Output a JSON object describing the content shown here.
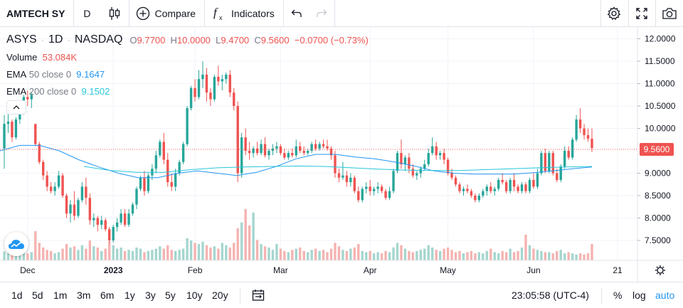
{
  "toolbar": {
    "symbol": "AMTECH SY",
    "interval": "D",
    "compare_label": "Compare",
    "indicators_label": "Indicators",
    "icons": [
      "candles-icon",
      "plus-circle-icon",
      "fx-icon",
      "undo-icon",
      "redo-icon",
      "gear-icon",
      "fullscreen-icon",
      "camera-icon"
    ]
  },
  "legend": {
    "ticker": "ASYS",
    "interval": "1D",
    "exchange": "NASDAQ",
    "o_label": "O",
    "o": "9.7700",
    "h_label": "H",
    "h": "10.0000",
    "l_label": "L",
    "l": "9.4700",
    "c_label": "C",
    "c": "9.5600",
    "change": "−0.0700 (−0.73%)",
    "volume_label": "Volume",
    "volume": "53.084K",
    "ema50_label": "EMA",
    "ema50_params": "50 close 0",
    "ema50_value": "9.1647",
    "ema200_label": "EMA",
    "ema200_params": "200 close 0",
    "ema200_value": "9.1502"
  },
  "chart_data": {
    "type": "candlestick",
    "y_ticks": [
      "12.0000",
      "11.5000",
      "11.0000",
      "10.5000",
      "10.0000",
      "9.0000",
      "8.5000",
      "8.0000",
      "7.5000"
    ],
    "ylim": [
      7.1,
      12.3
    ],
    "x_ticks": [
      "Dec",
      "2023",
      "Feb",
      "Mar",
      "Apr",
      "May",
      "Jun",
      "21"
    ],
    "last_price_label": "9.5600",
    "last_price": 9.56,
    "colors": {
      "up": "#26a69a",
      "down": "#ef5350",
      "up_volume": "#a5d6cf",
      "down_volume": "#f5b3b1",
      "ema50": "#2196f3",
      "ema200": "#26c6da"
    },
    "series": [
      {
        "name": "candles",
        "format": "open,high,low,close",
        "values": [
          [
            9.55,
            10.3,
            9.1,
            10.1
          ],
          [
            10.1,
            10.35,
            9.9,
            10.15
          ],
          [
            10.15,
            10.2,
            9.7,
            9.8
          ],
          [
            9.8,
            10.25,
            9.75,
            10.2
          ],
          [
            10.2,
            10.6,
            10.1,
            10.5
          ],
          [
            10.5,
            10.75,
            10.3,
            10.7
          ],
          [
            10.7,
            10.85,
            10.5,
            10.65
          ],
          [
            10.65,
            10.8,
            10.45,
            10.75
          ],
          [
            10.1,
            10.1,
            9.6,
            9.65
          ],
          [
            9.65,
            9.7,
            9.2,
            9.25
          ],
          [
            9.25,
            9.3,
            8.85,
            8.95
          ],
          [
            8.95,
            9.05,
            8.6,
            8.7
          ],
          [
            8.7,
            8.8,
            8.55,
            8.6
          ],
          [
            8.6,
            8.8,
            8.5,
            8.7
          ],
          [
            8.7,
            9.05,
            8.65,
            8.95
          ],
          [
            8.95,
            9.0,
            8.45,
            8.5
          ],
          [
            8.5,
            8.55,
            8.0,
            8.1
          ],
          [
            8.1,
            8.4,
            7.9,
            8.3
          ],
          [
            8.3,
            8.6,
            7.95,
            8.05
          ],
          [
            8.05,
            8.45,
            8.0,
            8.4
          ],
          [
            8.4,
            8.8,
            8.35,
            8.7
          ],
          [
            8.7,
            8.9,
            8.3,
            8.45
          ],
          [
            8.45,
            8.55,
            7.85,
            7.95
          ],
          [
            7.95,
            8.1,
            7.8,
            8.0
          ],
          [
            8.0,
            8.05,
            7.7,
            7.85
          ],
          [
            7.85,
            8.05,
            7.75,
            7.95
          ],
          [
            7.95,
            8.0,
            7.7,
            7.75
          ],
          [
            7.75,
            7.8,
            7.45,
            7.5
          ],
          [
            7.5,
            7.85,
            7.45,
            7.8
          ],
          [
            7.8,
            8.0,
            7.7,
            7.9
          ],
          [
            7.9,
            8.2,
            7.85,
            8.1
          ],
          [
            8.1,
            8.2,
            7.8,
            7.85
          ],
          [
            7.85,
            8.2,
            7.8,
            8.1
          ],
          [
            8.1,
            8.35,
            8.05,
            8.3
          ],
          [
            8.3,
            8.7,
            8.2,
            8.65
          ],
          [
            8.65,
            8.95,
            8.6,
            8.9
          ],
          [
            8.9,
            9.05,
            8.5,
            8.6
          ],
          [
            8.6,
            9.0,
            8.55,
            8.95
          ],
          [
            8.95,
            9.2,
            8.85,
            9.1
          ],
          [
            9.1,
            9.5,
            9.0,
            9.4
          ],
          [
            9.4,
            9.75,
            9.35,
            9.7
          ],
          [
            9.7,
            9.9,
            9.2,
            9.3
          ],
          [
            9.3,
            9.45,
            8.7,
            8.8
          ],
          [
            8.8,
            9.0,
            8.6,
            8.7
          ],
          [
            8.7,
            9.1,
            8.6,
            9.0
          ],
          [
            9.0,
            9.3,
            8.95,
            9.25
          ],
          [
            9.25,
            9.7,
            9.2,
            9.65
          ],
          [
            9.65,
            10.5,
            9.6,
            10.45
          ],
          [
            10.45,
            10.95,
            10.4,
            10.9
          ],
          [
            10.9,
            11.1,
            10.6,
            10.7
          ],
          [
            10.7,
            11.3,
            10.65,
            11.1
          ],
          [
            11.1,
            11.5,
            10.9,
            11.2
          ],
          [
            11.2,
            11.35,
            10.6,
            10.8
          ],
          [
            10.8,
            10.9,
            10.5,
            10.65
          ],
          [
            10.65,
            11.2,
            10.6,
            11.15
          ],
          [
            11.15,
            11.4,
            10.95,
            11.05
          ],
          [
            11.05,
            11.2,
            10.85,
            11.1
          ],
          [
            11.1,
            11.25,
            11.0,
            11.2
          ],
          [
            11.2,
            11.3,
            10.7,
            10.8
          ],
          [
            10.8,
            10.9,
            10.4,
            10.5
          ],
          [
            10.5,
            10.6,
            8.8,
            9.0
          ],
          [
            9.0,
            9.9,
            8.9,
            9.8
          ],
          [
            9.8,
            10.0,
            9.4,
            9.5
          ],
          [
            9.5,
            9.7,
            9.3,
            9.45
          ],
          [
            9.45,
            9.6,
            9.35,
            9.55
          ],
          [
            9.55,
            9.7,
            9.4,
            9.45
          ],
          [
            9.45,
            9.75,
            9.4,
            9.65
          ],
          [
            9.65,
            9.8,
            9.35,
            9.4
          ],
          [
            9.4,
            9.55,
            9.3,
            9.5
          ],
          [
            9.5,
            9.65,
            9.4,
            9.55
          ],
          [
            9.55,
            9.7,
            9.45,
            9.6
          ],
          [
            9.6,
            9.65,
            9.4,
            9.45
          ],
          [
            9.45,
            9.55,
            9.3,
            9.35
          ],
          [
            9.35,
            9.5,
            9.3,
            9.45
          ],
          [
            9.45,
            9.55,
            9.35,
            9.4
          ],
          [
            9.4,
            9.75,
            9.35,
            9.6
          ],
          [
            9.6,
            9.7,
            9.45,
            9.5
          ],
          [
            9.5,
            9.6,
            9.4,
            9.45
          ],
          [
            9.45,
            9.55,
            9.4,
            9.5
          ],
          [
            9.5,
            9.7,
            9.45,
            9.65
          ],
          [
            9.65,
            9.75,
            9.5,
            9.55
          ],
          [
            9.55,
            9.7,
            9.5,
            9.65
          ],
          [
            9.65,
            9.75,
            9.55,
            9.6
          ],
          [
            9.6,
            9.75,
            9.5,
            9.55
          ],
          [
            9.55,
            9.6,
            9.3,
            9.4
          ],
          [
            9.4,
            9.5,
            8.9,
            9.0
          ],
          [
            9.0,
            9.1,
            8.8,
            8.9
          ],
          [
            8.9,
            9.25,
            8.85,
            8.95
          ],
          [
            8.95,
            9.05,
            8.7,
            8.8
          ],
          [
            8.8,
            9.0,
            8.7,
            8.9
          ],
          [
            8.9,
            8.95,
            8.55,
            8.6
          ],
          [
            8.6,
            8.7,
            8.35,
            8.4
          ],
          [
            8.4,
            8.7,
            8.35,
            8.65
          ],
          [
            8.65,
            8.8,
            8.55,
            8.7
          ],
          [
            8.7,
            8.85,
            8.5,
            8.6
          ],
          [
            8.6,
            8.7,
            8.5,
            8.65
          ],
          [
            8.65,
            8.8,
            8.55,
            8.7
          ],
          [
            8.7,
            8.75,
            8.55,
            8.6
          ],
          [
            8.6,
            8.65,
            8.4,
            8.45
          ],
          [
            8.45,
            8.7,
            8.4,
            8.6
          ],
          [
            8.6,
            9.1,
            8.55,
            9.05
          ],
          [
            9.05,
            9.5,
            9.0,
            9.45
          ],
          [
            9.45,
            9.75,
            9.1,
            9.2
          ],
          [
            9.2,
            9.4,
            9.05,
            9.35
          ],
          [
            9.35,
            9.45,
            9.0,
            9.1
          ],
          [
            9.1,
            9.2,
            8.9,
            8.95
          ],
          [
            8.95,
            9.05,
            8.85,
            9.0
          ],
          [
            9.0,
            9.15,
            8.9,
            9.1
          ],
          [
            9.1,
            9.3,
            9.05,
            9.2
          ],
          [
            9.2,
            9.55,
            9.15,
            9.45
          ],
          [
            9.45,
            9.8,
            9.4,
            9.6
          ],
          [
            9.6,
            9.7,
            9.3,
            9.4
          ],
          [
            9.4,
            9.5,
            9.3,
            9.45
          ],
          [
            9.45,
            9.55,
            9.2,
            9.3
          ],
          [
            9.3,
            9.35,
            8.95,
            9.0
          ],
          [
            9.0,
            9.1,
            8.85,
            8.9
          ],
          [
            8.9,
            8.95,
            8.7,
            8.75
          ],
          [
            8.75,
            8.8,
            8.55,
            8.6
          ],
          [
            8.6,
            8.7,
            8.5,
            8.65
          ],
          [
            8.65,
            8.75,
            8.55,
            8.6
          ],
          [
            8.6,
            8.65,
            8.45,
            8.5
          ],
          [
            8.5,
            8.55,
            8.35,
            8.4
          ],
          [
            8.4,
            8.55,
            8.35,
            8.5
          ],
          [
            8.5,
            8.65,
            8.45,
            8.6
          ],
          [
            8.6,
            8.75,
            8.5,
            8.7
          ],
          [
            8.7,
            8.8,
            8.55,
            8.6
          ],
          [
            8.6,
            8.7,
            8.5,
            8.65
          ],
          [
            8.65,
            8.9,
            8.6,
            8.85
          ],
          [
            8.85,
            9.0,
            8.75,
            8.8
          ],
          [
            8.8,
            8.85,
            8.55,
            8.6
          ],
          [
            8.6,
            8.9,
            8.55,
            8.85
          ],
          [
            8.85,
            9.0,
            8.6,
            8.7
          ],
          [
            8.7,
            8.75,
            8.55,
            8.6
          ],
          [
            8.6,
            8.8,
            8.55,
            8.75
          ],
          [
            8.75,
            8.8,
            8.55,
            8.6
          ],
          [
            8.6,
            8.9,
            8.55,
            8.85
          ],
          [
            8.85,
            9.0,
            8.65,
            8.7
          ],
          [
            8.7,
            9.1,
            8.65,
            9.0
          ],
          [
            9.0,
            9.5,
            8.95,
            9.45
          ],
          [
            9.45,
            9.55,
            9.0,
            9.05
          ],
          [
            9.05,
            9.5,
            9.0,
            9.45
          ],
          [
            9.45,
            9.5,
            8.95,
            9.0
          ],
          [
            9.0,
            9.1,
            8.8,
            8.85
          ],
          [
            8.85,
            9.2,
            8.8,
            9.15
          ],
          [
            9.15,
            9.6,
            9.1,
            9.5
          ],
          [
            9.5,
            9.6,
            9.3,
            9.35
          ],
          [
            9.35,
            9.8,
            9.3,
            9.75
          ],
          [
            9.75,
            10.3,
            9.7,
            10.2
          ],
          [
            10.2,
            10.45,
            9.9,
            10.0
          ],
          [
            10.0,
            10.1,
            9.75,
            9.85
          ],
          [
            9.85,
            10.0,
            9.7,
            9.77
          ],
          [
            9.77,
            10.0,
            9.47,
            9.56
          ]
        ]
      },
      {
        "name": "volume",
        "format": "relative",
        "values": [
          0.15,
          0.12,
          0.2,
          0.14,
          0.18,
          0.16,
          0.12,
          0.14,
          0.5,
          0.3,
          0.22,
          0.18,
          0.16,
          0.12,
          0.14,
          0.2,
          0.28,
          0.22,
          0.24,
          0.18,
          0.26,
          0.2,
          0.34,
          0.24,
          0.22,
          0.16,
          0.2,
          0.32,
          0.26,
          0.2,
          0.22,
          0.16,
          0.18,
          0.16,
          0.22,
          0.2,
          0.14,
          0.16,
          0.18,
          0.2,
          0.24,
          0.2,
          0.26,
          0.18,
          0.16,
          0.18,
          0.2,
          0.38,
          0.34,
          0.3,
          0.28,
          0.32,
          0.26,
          0.22,
          0.24,
          0.2,
          0.3,
          0.26,
          0.22,
          0.3,
          0.55,
          0.65,
          0.88,
          0.6,
          0.82,
          0.35,
          0.28,
          0.24,
          0.22,
          0.18,
          0.28,
          0.2,
          0.16,
          0.14,
          0.18,
          0.2,
          0.22,
          0.16,
          0.14,
          0.18,
          0.2,
          0.16,
          0.18,
          0.14,
          0.2,
          0.3,
          0.24,
          0.18,
          0.16,
          0.2,
          0.22,
          0.28,
          0.16,
          0.14,
          0.16,
          0.12,
          0.14,
          0.12,
          0.16,
          0.14,
          0.22,
          0.3,
          0.26,
          0.2,
          0.16,
          0.14,
          0.16,
          0.18,
          0.2,
          0.26,
          0.22,
          0.18,
          0.16,
          0.2,
          0.22,
          0.18,
          0.14,
          0.16,
          0.12,
          0.14,
          0.16,
          0.12,
          0.14,
          0.12,
          0.16,
          0.2,
          0.14,
          0.12,
          0.16,
          0.14,
          0.2,
          0.14,
          0.16,
          0.22,
          0.44,
          0.26,
          0.2,
          0.18,
          0.16,
          0.14,
          0.14,
          0.12,
          0.16,
          0.18,
          0.12,
          0.14,
          0.12,
          0.1,
          0.12,
          0.1,
          0.12,
          0.28
        ]
      },
      {
        "name": "EMA 50",
        "values": [
          9.5,
          9.62,
          9.62,
          9.5,
          9.3,
          9.14,
          9.0,
          8.9,
          8.9,
          9.0,
          9.05,
          9.0,
          8.95,
          9.02,
          9.15,
          9.32,
          9.42,
          9.42,
          9.36,
          9.32,
          9.25,
          9.16,
          9.05,
          9.0,
          8.98,
          8.98,
          8.98,
          9.01,
          9.05,
          9.1,
          9.14
        ]
      },
      {
        "name": "EMA 200",
        "values": [
          9.15,
          9.06,
          9.02,
          9.02,
          9.08,
          9.12,
          9.14,
          9.15,
          9.16,
          9.15,
          9.12,
          9.09,
          9.07,
          9.06,
          9.06,
          9.08,
          9.1,
          9.12,
          9.14,
          9.15
        ]
      }
    ]
  },
  "bottombar": {
    "ranges": [
      "1d",
      "5d",
      "1m",
      "3m",
      "6m",
      "1y",
      "3y",
      "5y",
      "10y",
      "20y"
    ],
    "clock": "23:05:58 (UTC-4)",
    "percent_label": "%",
    "log_label": "log",
    "auto_label": "auto",
    "auto_color": "#2196f3"
  }
}
